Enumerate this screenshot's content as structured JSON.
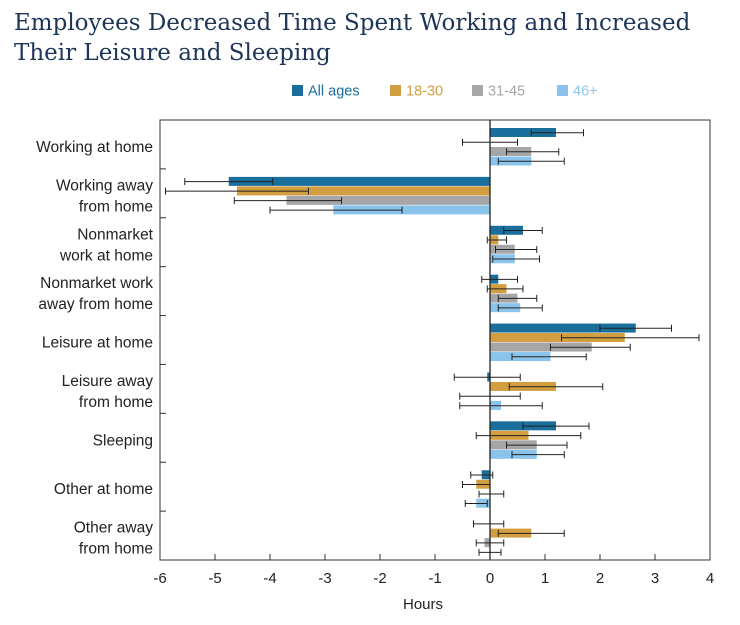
{
  "title_lines": [
    "Employees Decreased Time Spent Working and Increased",
    "Their Leisure and Sleeping"
  ],
  "chart_data": {
    "type": "bar",
    "orientation": "horizontal",
    "title": "Employees Decreased Time Spent Working and Increased Their Leisure and Sleeping",
    "xlabel": "Hours",
    "ylabel": "",
    "xlim": [
      -6,
      4
    ],
    "xticks": [
      "-6",
      "-5",
      "-4",
      "-3",
      "-2",
      "-1",
      "0",
      "1",
      "2",
      "3",
      "4"
    ],
    "grid": false,
    "legend_position": "top",
    "categories": [
      [
        "Working at home"
      ],
      [
        "Working away",
        "from home"
      ],
      [
        "Nonmarket",
        "work at home"
      ],
      [
        "Nonmarket work",
        "away from home"
      ],
      [
        "Leisure at home"
      ],
      [
        "Leisure away",
        "from home"
      ],
      [
        "Sleeping"
      ],
      [
        "Other at home"
      ],
      [
        "Other away",
        "from home"
      ]
    ],
    "series": [
      {
        "name": "All ages",
        "color": "#1a6e9c",
        "values": [
          1.2,
          -4.75,
          0.6,
          0.15,
          2.65,
          -0.05,
          1.2,
          -0.15,
          0.0
        ],
        "ci": [
          [
            0.75,
            1.7
          ],
          [
            -5.55,
            -3.95
          ],
          [
            0.25,
            0.95
          ],
          [
            -0.15,
            0.5
          ],
          [
            2.0,
            3.3
          ],
          [
            -0.65,
            0.55
          ],
          [
            0.6,
            1.8
          ],
          [
            -0.35,
            0.05
          ],
          [
            -0.3,
            0.25
          ]
        ]
      },
      {
        "name": "18-30",
        "color": "#d39e3f",
        "values": [
          0.0,
          -4.6,
          0.15,
          0.3,
          2.45,
          1.2,
          0.7,
          -0.25,
          0.75
        ],
        "ci": [
          [
            -0.5,
            0.5
          ],
          [
            -5.9,
            -3.3
          ],
          [
            -0.05,
            0.3
          ],
          [
            -0.05,
            0.6
          ],
          [
            1.3,
            3.8
          ],
          [
            0.35,
            2.05
          ],
          [
            -0.25,
            1.65
          ],
          [
            -0.5,
            0.0
          ],
          [
            0.15,
            1.35
          ]
        ]
      },
      {
        "name": "31-45",
        "color": "#a6a6a8",
        "values": [
          0.75,
          -3.7,
          0.45,
          0.5,
          1.85,
          0.0,
          0.85,
          0.0,
          -0.1
        ],
        "ci": [
          [
            0.3,
            1.25
          ],
          [
            -4.65,
            -2.7
          ],
          [
            0.1,
            0.85
          ],
          [
            0.15,
            0.85
          ],
          [
            1.1,
            2.55
          ],
          [
            -0.55,
            0.55
          ],
          [
            0.3,
            1.4
          ],
          [
            -0.2,
            0.25
          ],
          [
            -0.25,
            0.25
          ]
        ]
      },
      {
        "name": "46+",
        "color": "#8ac4ec",
        "values": [
          0.75,
          -2.85,
          0.45,
          0.55,
          1.1,
          0.2,
          0.85,
          -0.25,
          0.0
        ],
        "ci": [
          [
            0.15,
            1.35
          ],
          [
            -4.0,
            -1.6
          ],
          [
            0.05,
            0.9
          ],
          [
            0.15,
            0.95
          ],
          [
            0.4,
            1.75
          ],
          [
            -0.55,
            0.95
          ],
          [
            0.4,
            1.35
          ],
          [
            -0.45,
            -0.05
          ],
          [
            -0.2,
            0.2
          ]
        ]
      }
    ]
  }
}
